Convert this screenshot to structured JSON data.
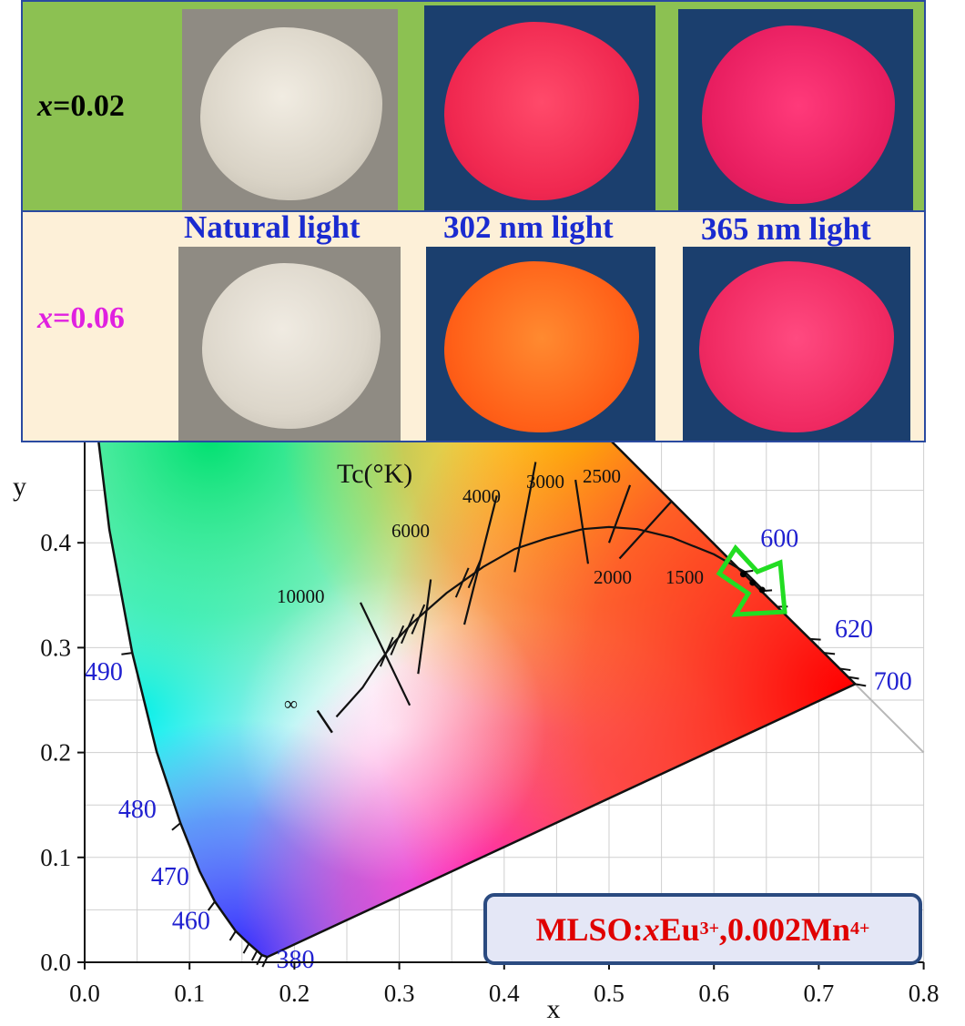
{
  "photo_panel": {
    "rows": [
      {
        "label_var": "x",
        "label_val": "=0.02",
        "label_color": "#000000"
      },
      {
        "label_var": "x",
        "label_val": "=0.06",
        "label_color": "#e020e0"
      }
    ],
    "columns": [
      "Natural light",
      "302 nm light",
      "365 nm light"
    ]
  },
  "chart_data": {
    "type": "scatter",
    "xlabel": "x",
    "ylabel": "y",
    "xlim": [
      0.0,
      0.8
    ],
    "ylim": [
      0.0,
      0.5
    ],
    "x_ticks": [
      "0.0",
      "0.1",
      "0.2",
      "0.3",
      "0.4",
      "0.5",
      "0.6",
      "0.7",
      "0.8"
    ],
    "y_ticks": [
      "0.0",
      "0.1",
      "0.2",
      "0.3",
      "0.4"
    ],
    "grid": true,
    "spectral_locus_labels": [
      {
        "nm": "380",
        "x": 0.174,
        "y": 0.005
      },
      {
        "nm": "460",
        "x": 0.144,
        "y": 0.03
      },
      {
        "nm": "470",
        "x": 0.124,
        "y": 0.058
      },
      {
        "nm": "480",
        "x": 0.091,
        "y": 0.133
      },
      {
        "nm": "490",
        "x": 0.045,
        "y": 0.295
      },
      {
        "nm": "600",
        "x": 0.627,
        "y": 0.372
      },
      {
        "nm": "620",
        "x": 0.691,
        "y": 0.308
      },
      {
        "nm": "700",
        "x": 0.735,
        "y": 0.265
      }
    ],
    "planckian_title": "Tc(°K)",
    "cct_labels": [
      "∞",
      "10000",
      "6000",
      "4000",
      "3000",
      "2500",
      "2000",
      "1500"
    ],
    "sample_points": [
      {
        "x": 0.628,
        "y": 0.37
      },
      {
        "x": 0.637,
        "y": 0.362
      },
      {
        "x": 0.646,
        "y": 0.355
      }
    ],
    "legend_box": {
      "prefix": "MLSO:",
      "var": "x",
      "ion1": "Eu",
      "ion1_charge": "3+",
      "mid": ",0.002Mn",
      "ion2_charge": "4+"
    },
    "colors": {
      "arrow": "#22dd22",
      "wavelength_label": "#2020d0",
      "legend_text": "#e00000",
      "legend_border": "#2a4a80"
    }
  }
}
